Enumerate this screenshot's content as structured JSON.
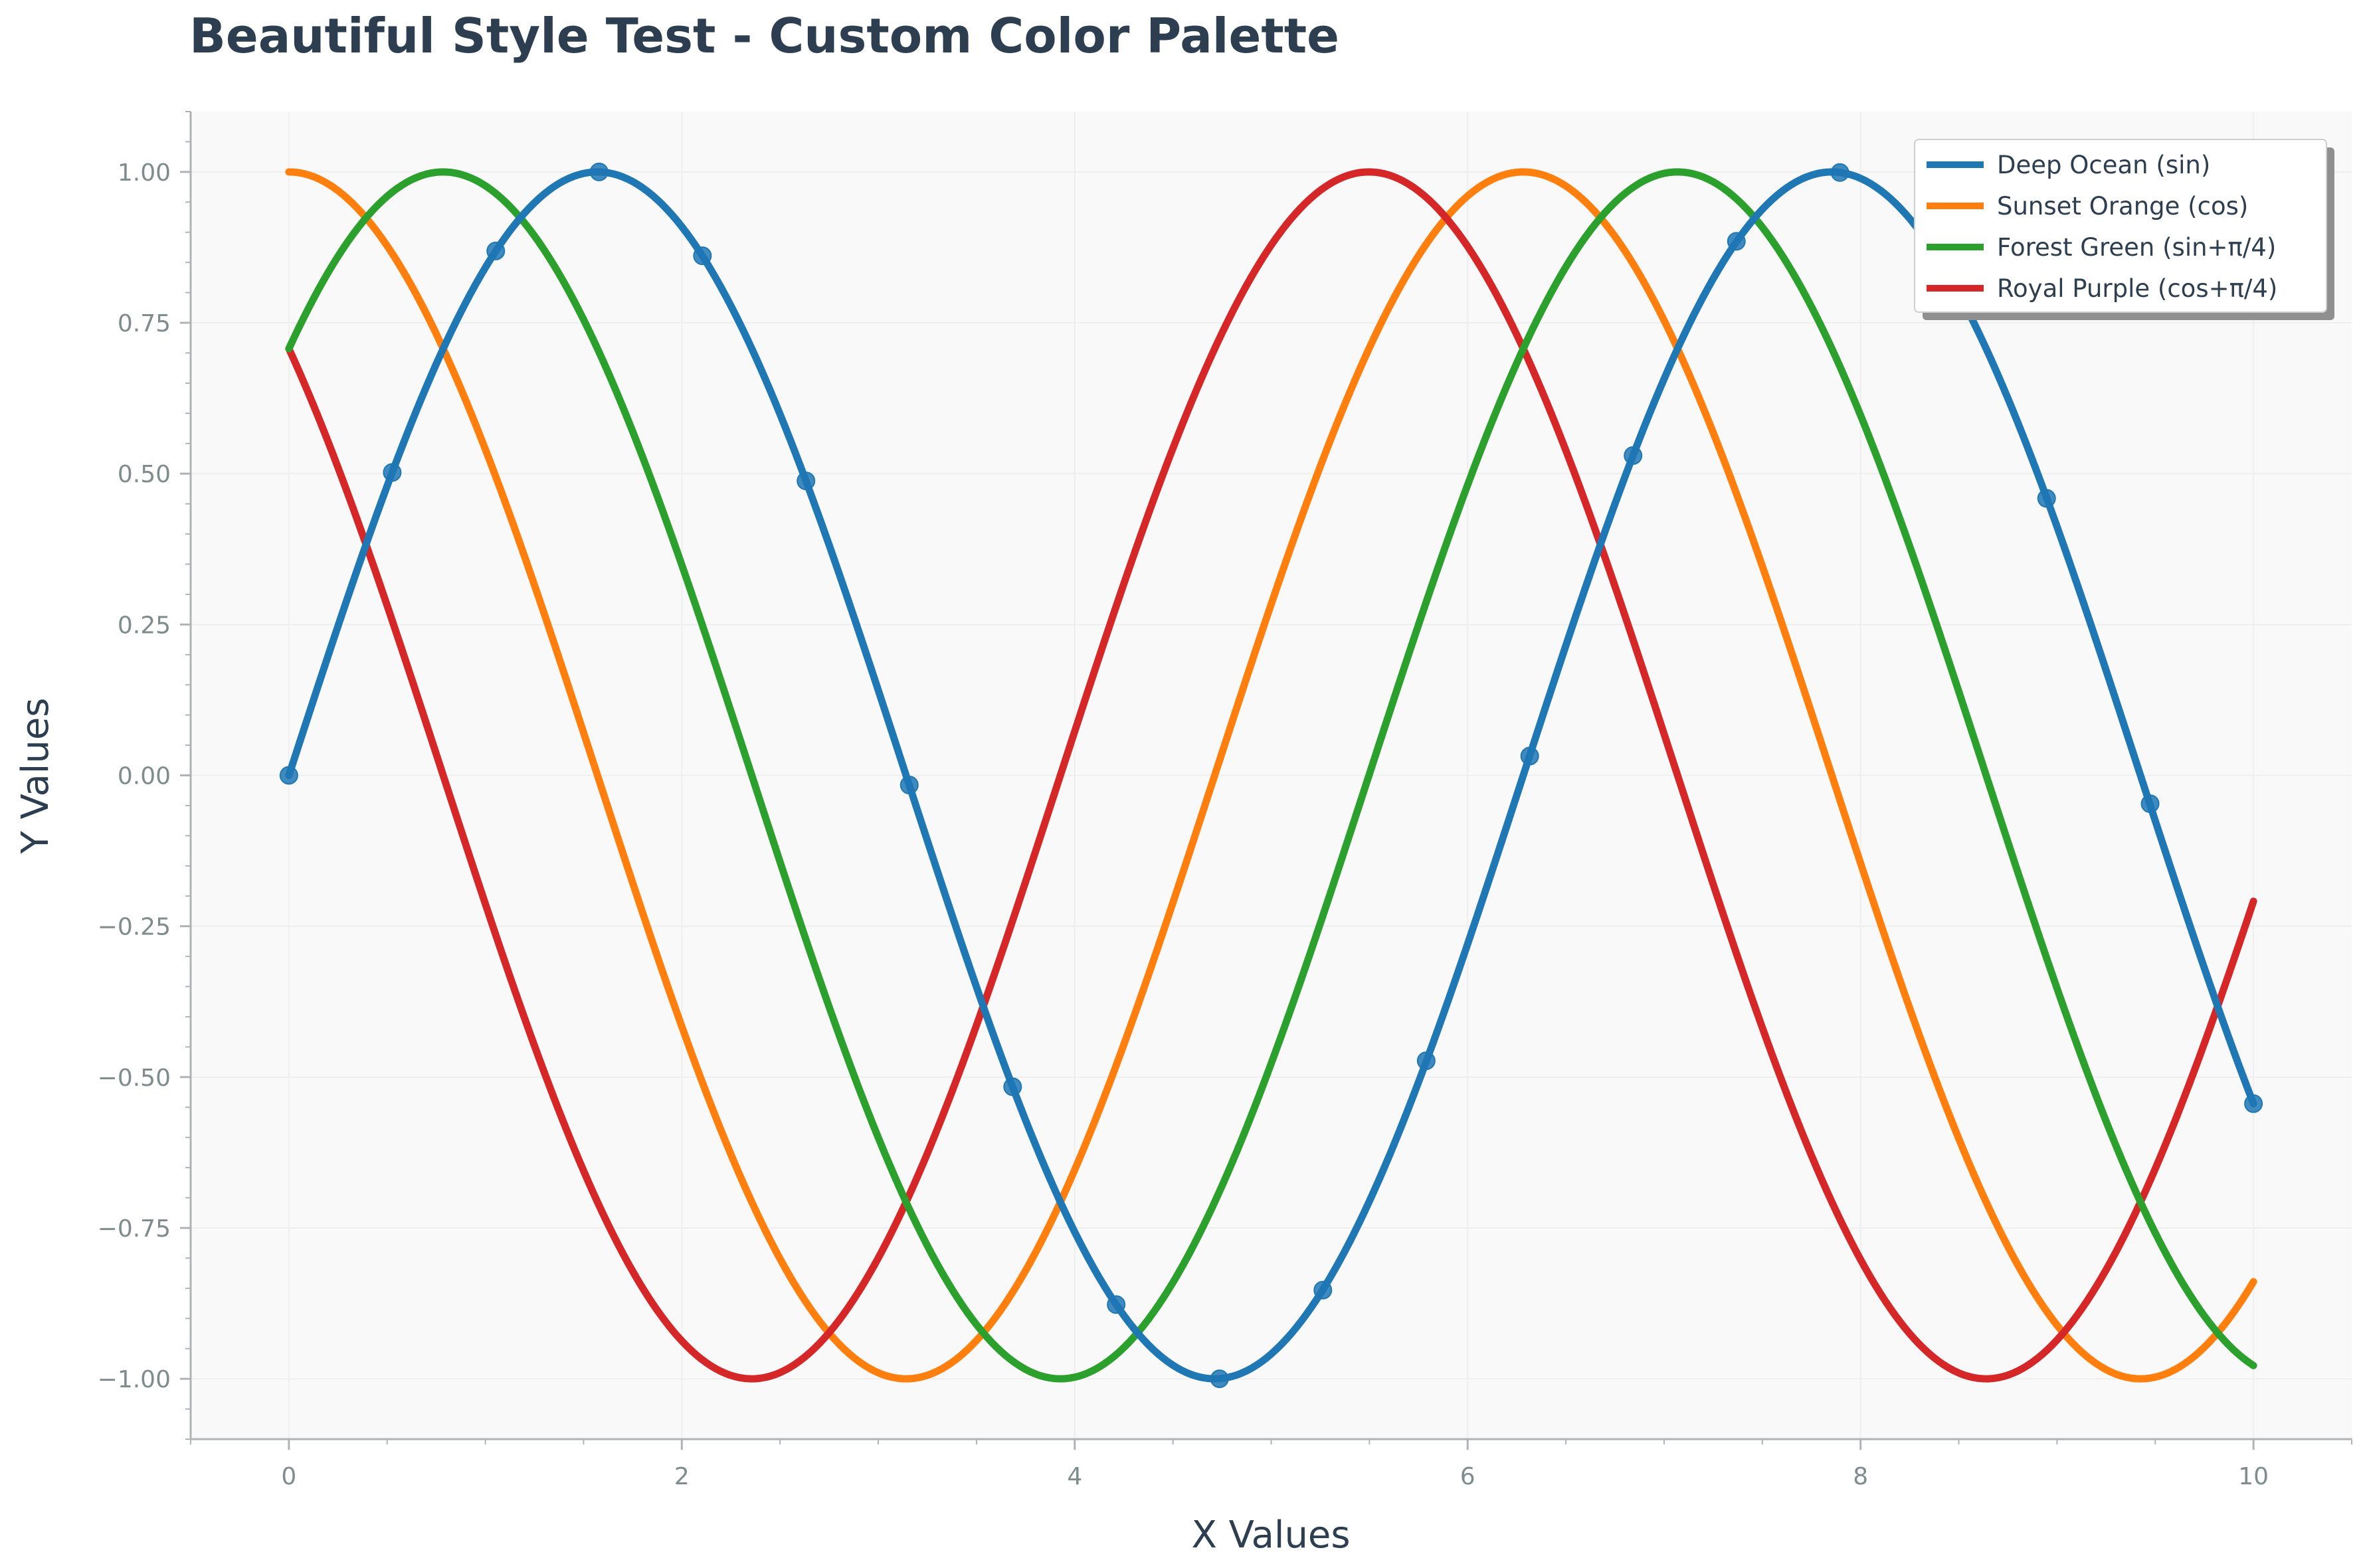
{
  "chart_data": {
    "type": "line",
    "title": "Beautiful Style Test - Custom Color Palette",
    "xlabel": "X Values",
    "ylabel": "Y Values",
    "xlim": [
      -0.5,
      10.5
    ],
    "ylim": [
      -1.1,
      1.1
    ],
    "x_ticks": [
      0,
      2,
      4,
      6,
      8,
      10
    ],
    "x_tick_labels": [
      "0",
      "2",
      "4",
      "6",
      "8",
      "10"
    ],
    "y_ticks": [
      1.0,
      0.75,
      0.5,
      0.25,
      0.0,
      -0.25,
      -0.5,
      -0.75,
      -1.0
    ],
    "y_tick_labels": [
      "1.00",
      "0.75",
      "0.50",
      "0.25",
      "0.00",
      "−0.25",
      "−0.50",
      "−0.75",
      "−1.00"
    ],
    "legend_position": "top-right",
    "grid": false,
    "background_color": "#f9f9f9",
    "series": [
      {
        "name": "Deep Ocean (sin)",
        "color": "#1f77b4",
        "function": "sin(x)",
        "x_range": [
          0,
          10
        ],
        "markers": {
          "x": [
            0,
            0.526,
            1.053,
            1.579,
            2.105,
            2.632,
            3.158,
            3.684,
            4.211,
            4.737,
            5.263,
            5.789,
            6.316,
            6.842,
            7.368,
            7.895,
            8.421,
            8.947,
            9.474,
            10
          ],
          "y": [
            0,
            0.502,
            0.869,
            1.0,
            0.861,
            0.488,
            -0.016,
            -0.516,
            -0.877,
            -1.0,
            -0.853,
            -0.473,
            0.032,
            0.53,
            0.885,
            0.999,
            0.844,
            0.459,
            -0.047,
            -0.544
          ]
        }
      },
      {
        "name": "Sunset Orange (cos)",
        "color": "#ff7f0e",
        "function": "cos(x)",
        "x_range": [
          0,
          10
        ]
      },
      {
        "name": "Forest Green (sin+π/4)",
        "color": "#2ca02c",
        "function": "sin(x+π/4)",
        "x_range": [
          0,
          10
        ]
      },
      {
        "name": "Royal Purple (cos+π/4)",
        "color": "#d62728",
        "function": "cos(x+π/4)",
        "x_range": [
          0,
          10
        ]
      }
    ]
  }
}
